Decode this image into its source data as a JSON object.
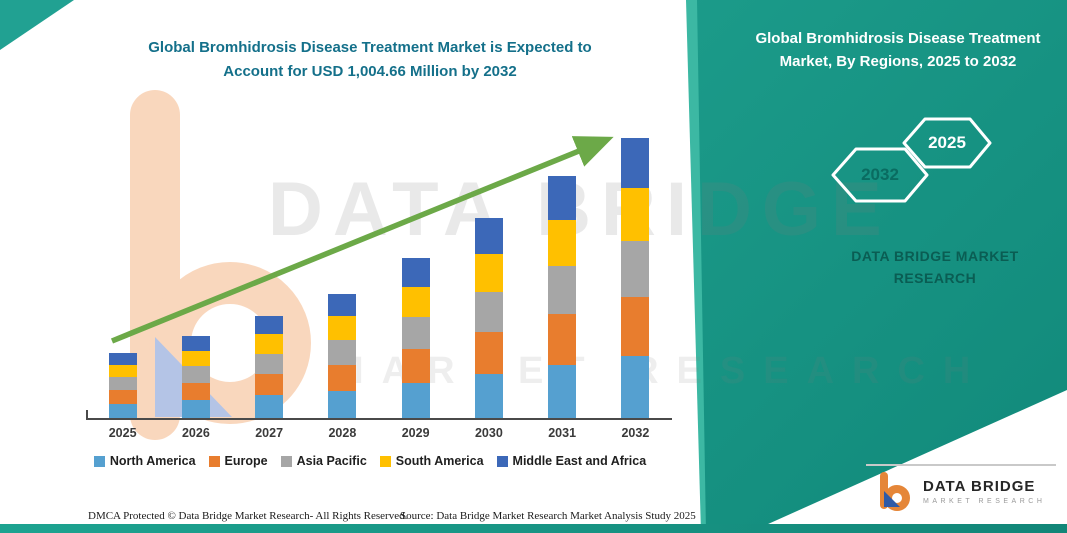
{
  "header": {
    "title_line1": "Global Bromhidrosis Disease Treatment Market is Expected to",
    "title_line2": "Account for USD 1,004.66 Million by 2032"
  },
  "side_panel": {
    "title": "Global Bromhidrosis Disease Treatment Market, By Regions, 2025 to 2032",
    "hexagon_back_label": "2032",
    "hexagon_front_label": "2025",
    "brand_line1": "DATA BRIDGE MARKET",
    "brand_line2": "RESEARCH"
  },
  "watermark": {
    "line1": "DATA BRIDGE",
    "line2": "MARKET RESEARCH"
  },
  "footer": {
    "dmca": "DMCA Protected © Data Bridge Market Research-  All Rights Reserved.",
    "source": "Source: Data Bridge Market Research  Market Analysis Study 2025"
  },
  "logo": {
    "name": "DATA BRIDGE",
    "tagline": "MARKET RESEARCH"
  },
  "chart_data": {
    "type": "bar",
    "stacked": true,
    "title": "Global Bromhidrosis Disease Treatment Market is Expected to Account for USD 1,004.66 Million by 2032",
    "unit": "USD Million",
    "categories": [
      "2025",
      "2026",
      "2027",
      "2028",
      "2029",
      "2030",
      "2031",
      "2032"
    ],
    "series": [
      {
        "name": "North America",
        "color": "#55A0D0",
        "values": [
          51,
          65,
          81,
          98,
          126,
          158,
          191,
          221
        ]
      },
      {
        "name": "Europe",
        "color": "#E87D2E",
        "values": [
          49,
          62,
          77,
          93,
          121,
          151,
          182,
          211.66
        ]
      },
      {
        "name": "Asia Pacific",
        "color": "#A6A6A6",
        "values": [
          47,
          59,
          73,
          89,
          115,
          144,
          174,
          201
        ]
      },
      {
        "name": "South America",
        "color": "#FFC000",
        "values": [
          44,
          56,
          70,
          85,
          109,
          136,
          165,
          191
        ]
      },
      {
        "name": "Middle East and Africa",
        "color": "#3C68B8",
        "values": [
          42,
          53,
          66,
          80,
          103,
          129,
          156,
          180
        ]
      }
    ],
    "totals": [
      233,
      295,
      367,
      445,
      574,
      718,
      868,
      1004.66
    ],
    "ylim": [
      0,
      1050
    ],
    "grid": false,
    "legend_position": "bottom",
    "trend_arrow": true
  }
}
